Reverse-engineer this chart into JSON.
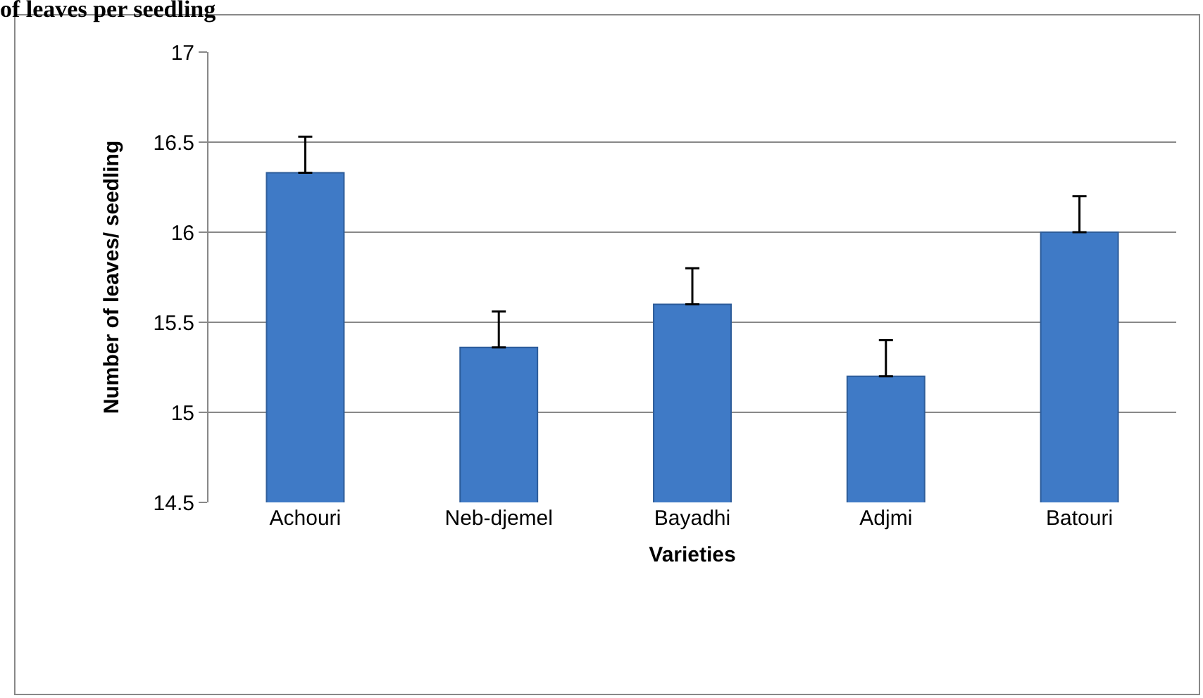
{
  "chart_data": {
    "type": "bar",
    "title": "of leaves per seedling",
    "xlabel": "Varieties",
    "ylabel": "Number of leaves/ seedling",
    "categories": [
      "Achouri",
      "Neb-djemel",
      "Bayadhi",
      "Adjmi",
      "Batouri"
    ],
    "values": [
      16.33,
      15.36,
      15.6,
      15.2,
      16.0
    ],
    "errors": [
      [
        16.33,
        16.53
      ],
      [
        15.36,
        15.56
      ],
      [
        15.6,
        15.8
      ],
      [
        15.2,
        15.4
      ],
      [
        16.0,
        16.2
      ]
    ],
    "color": "#3f7ac6",
    "ylim": [
      14.5,
      17
    ],
    "yticks": [
      14.5,
      15,
      15.5,
      16,
      16.5,
      17
    ],
    "grid": "y"
  }
}
